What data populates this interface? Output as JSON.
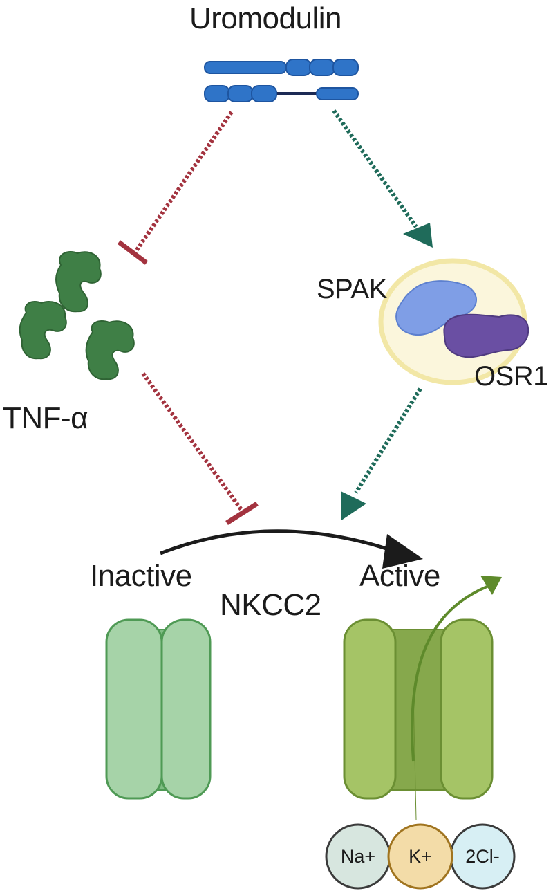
{
  "labels": {
    "uromodulin": "Uromodulin",
    "spak": "SPAK",
    "osr1": "OSR1",
    "tnf_alpha": "TNF-α",
    "inactive": "Inactive",
    "active": "Active",
    "nkcc2": "NKCC2"
  },
  "ions": [
    "Na+",
    "K+",
    "2Cl-"
  ],
  "colors": {
    "uromodulin_domain": "#2f74c8",
    "uromodulin_linker": "#1c2a55",
    "inhibition": "#a3333f",
    "activation": "#1f6b5a",
    "tnf_protein": "#3f7f46",
    "spak_protein": "#7f9ee6",
    "osr1_protein": "#6a4fa3",
    "complex_ring": "#f2e7a6",
    "nkcc2_inactive": "#a6d3a8",
    "nkcc2_active": "#a5c466",
    "ion_flow_arrow": "#5e8a2b",
    "na_ion": "#d7e6df",
    "k_ion": "#f3dca8",
    "cl_ion": "#d7eff4"
  }
}
